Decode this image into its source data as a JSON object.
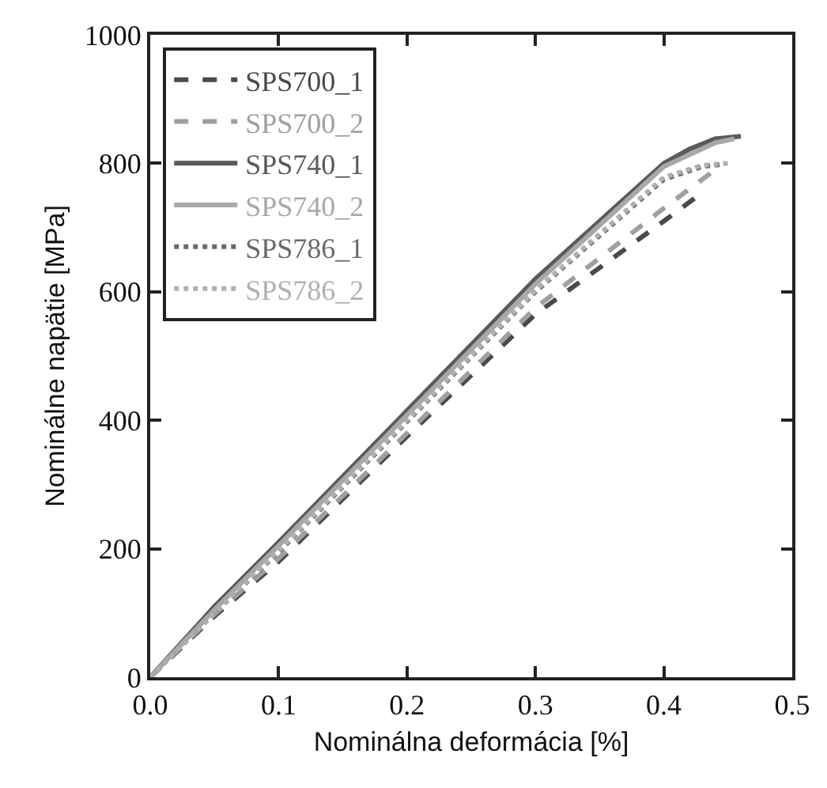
{
  "chart_data": {
    "type": "line",
    "xlabel": "Nominálna deformácia [%]",
    "ylabel": "Nominálne napätie [MPa]",
    "xlim": [
      0,
      0.5
    ],
    "xticks": [
      {
        "value": 0,
        "label": "0.0"
      },
      0.1,
      0.2,
      0.3,
      0.4,
      0.5
    ],
    "ylim": [
      0,
      1000
    ],
    "yticks": [
      0,
      200,
      400,
      600,
      800,
      1000
    ],
    "grid": false,
    "legend": "top left",
    "marker": "none",
    "series": [
      {
        "name": "SPS700_1",
        "color": "#4a4a4a",
        "line_style": "dashed",
        "x": [
          0,
          0.05,
          0.1,
          0.2,
          0.3,
          0.4,
          0.425
        ],
        "values": [
          0,
          95,
          180,
          375,
          565,
          710,
          747
        ]
      },
      {
        "name": "SPS700_2",
        "color": "#a0a0a0",
        "line_style": "dashed",
        "x": [
          0,
          0.05,
          0.1,
          0.2,
          0.3,
          0.4,
          0.44
        ],
        "values": [
          0,
          98,
          185,
          380,
          575,
          730,
          790
        ]
      },
      {
        "name": "SPS740_1",
        "color": "#5a5a5a",
        "line_style": "solid",
        "x": [
          0,
          0.05,
          0.1,
          0.2,
          0.3,
          0.4,
          0.42,
          0.44,
          0.46
        ],
        "values": [
          0,
          110,
          210,
          415,
          620,
          800,
          822,
          838,
          842
        ]
      },
      {
        "name": "SPS740_2",
        "color": "#a8a8a8",
        "line_style": "solid",
        "x": [
          0,
          0.05,
          0.1,
          0.2,
          0.3,
          0.4,
          0.44,
          0.455
        ],
        "values": [
          0,
          105,
          205,
          408,
          612,
          795,
          832,
          838
        ]
      },
      {
        "name": "SPS786_1",
        "color": "#6a6a6a",
        "line_style": "dotted",
        "x": [
          0,
          0.05,
          0.1,
          0.2,
          0.3,
          0.4,
          0.43,
          0.445
        ],
        "values": [
          0,
          100,
          195,
          398,
          600,
          775,
          795,
          798
        ]
      },
      {
        "name": "SPS786_2",
        "color": "#b0b0b0",
        "line_style": "dotted",
        "x": [
          0,
          0.05,
          0.1,
          0.2,
          0.3,
          0.4,
          0.43,
          0.45
        ],
        "values": [
          0,
          100,
          197,
          400,
          602,
          778,
          797,
          800
        ]
      }
    ]
  }
}
